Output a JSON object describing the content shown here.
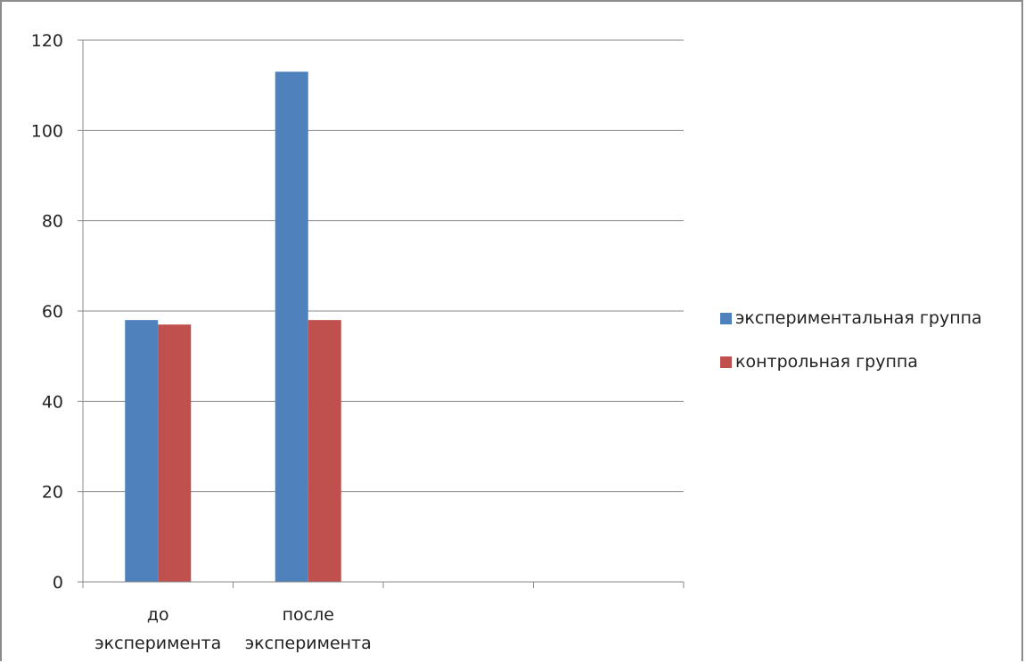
{
  "chart_data": {
    "type": "bar",
    "categories": [
      [
        "до",
        "эксперимента"
      ],
      [
        "после",
        "эксперимента"
      ],
      [
        "",
        ""
      ],
      [
        "",
        ""
      ]
    ],
    "series": [
      {
        "name": "экспериментальная группа",
        "color": "#4f81bd",
        "values": [
          58,
          113,
          null,
          null
        ]
      },
      {
        "name": "контрольная группа",
        "color": "#c0504d",
        "values": [
          57,
          58,
          null,
          null
        ]
      }
    ],
    "yticks": [
      0,
      20,
      40,
      60,
      80,
      100,
      120
    ],
    "ylim": [
      0,
      120
    ],
    "grid": true,
    "legend_position": "right"
  }
}
